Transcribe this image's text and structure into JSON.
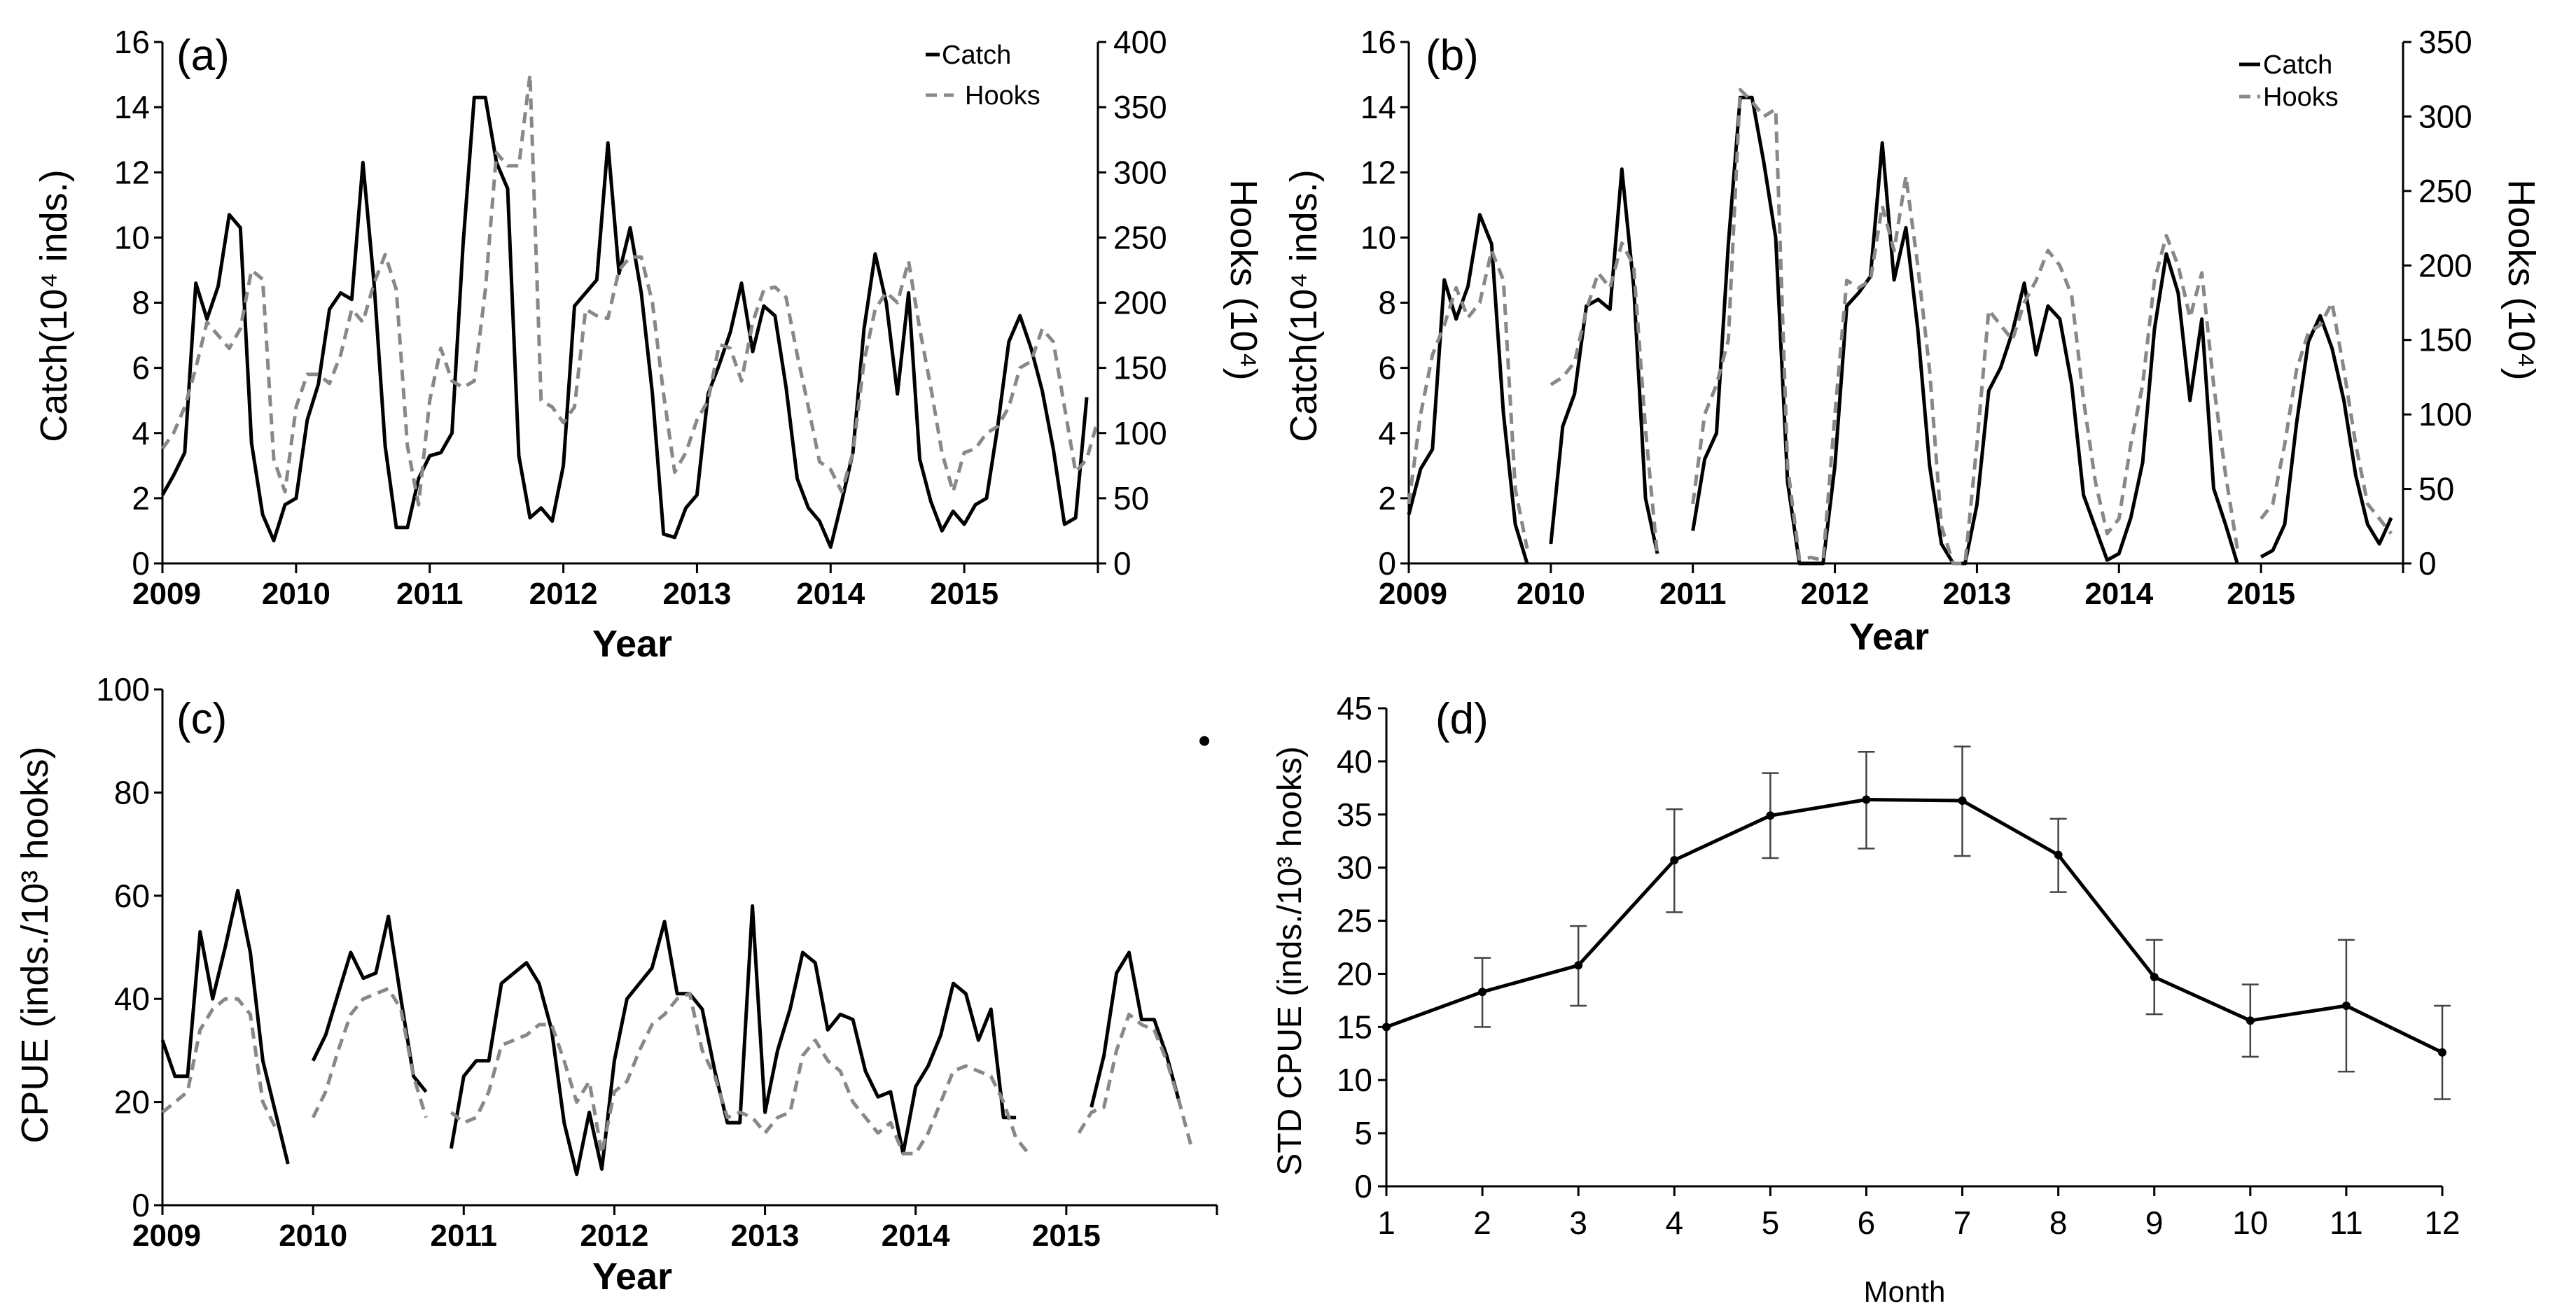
{
  "chart_data": [
    {
      "id": "a",
      "type": "line",
      "panel_label": "(a)",
      "xlabel": "Year",
      "ylabel": "Catch(10⁴ inds.)",
      "y2label": "Hooks (10⁴)",
      "ylim": [
        0,
        16
      ],
      "y2lim": [
        0,
        400
      ],
      "y_ticks": [
        0,
        2,
        4,
        6,
        8,
        10,
        12,
        14,
        16
      ],
      "y2_ticks": [
        0,
        50,
        100,
        150,
        200,
        250,
        300,
        350,
        400
      ],
      "x_ticks": [
        "2009",
        "2010",
        "2011",
        "2012",
        "2013",
        "2014",
        "2015"
      ],
      "legend": [
        "Catch",
        "Hooks"
      ],
      "legend_position": "top-right",
      "series": [
        {
          "name": "Catch",
          "axis": "left",
          "style": "solid",
          "values": [
            2.1,
            2.7,
            3.4,
            8.6,
            7.5,
            8.5,
            10.7,
            10.3,
            3.7,
            1.5,
            0.7,
            1.8,
            2.0,
            4.4,
            5.5,
            7.8,
            8.3,
            8.1,
            12.3,
            8.6,
            3.6,
            1.1,
            1.1,
            2.6,
            3.3,
            3.4,
            4.0,
            9.8,
            14.3,
            14.3,
            12.3,
            11.5,
            3.3,
            1.4,
            1.7,
            1.3,
            3.0,
            7.9,
            8.3,
            8.7,
            12.9,
            8.9,
            10.3,
            8.3,
            5.2,
            0.9,
            0.8,
            1.7,
            2.1,
            5.2,
            6.1,
            7.1,
            8.6,
            6.5,
            7.9,
            7.6,
            5.4,
            2.6,
            1.7,
            1.3,
            0.5,
            1.9,
            3.4,
            7.2,
            9.5,
            8.0,
            5.2,
            8.3,
            3.2,
            1.9,
            1.0,
            1.6,
            1.2,
            1.8,
            2.0,
            4.2,
            6.8,
            7.6,
            6.6,
            5.3,
            3.5,
            1.2,
            1.4,
            5.1
          ]
        },
        {
          "name": "Hooks",
          "axis": "right",
          "style": "dashed",
          "values": [
            88,
            100,
            120,
            150,
            185,
            175,
            165,
            180,
            225,
            218,
            80,
            55,
            120,
            145,
            145,
            138,
            160,
            195,
            185,
            215,
            237,
            210,
            90,
            45,
            125,
            165,
            140,
            135,
            140,
            210,
            315,
            305,
            305,
            375,
            125,
            120,
            108,
            120,
            195,
            190,
            188,
            225,
            235,
            235,
            200,
            130,
            70,
            85,
            110,
            125,
            168,
            165,
            140,
            185,
            210,
            212,
            204,
            160,
            120,
            78,
            72,
            55,
            85,
            155,
            195,
            208,
            200,
            232,
            180,
            135,
            85,
            55,
            85,
            88,
            100,
            105,
            120,
            150,
            155,
            180,
            170,
            120,
            70,
            80,
            110
          ]
        }
      ]
    },
    {
      "id": "b",
      "type": "line",
      "panel_label": "(b)",
      "xlabel": "Year",
      "ylabel": "Catch(10⁴ inds.)",
      "y2label": "Hooks (10⁴)",
      "ylim": [
        0,
        16
      ],
      "y2lim": [
        0,
        350
      ],
      "y_ticks": [
        0,
        2,
        4,
        6,
        8,
        10,
        12,
        14,
        16
      ],
      "y2_ticks": [
        0,
        50,
        100,
        150,
        200,
        250,
        300,
        350
      ],
      "x_ticks": [
        "2009",
        "2010",
        "2011",
        "2012",
        "2013",
        "2014",
        "2015"
      ],
      "legend": [
        "Catch",
        "Hooks"
      ],
      "legend_position": "top-right",
      "series": [
        {
          "name": "Catch",
          "axis": "left",
          "style": "solid",
          "values": [
            1.5,
            2.9,
            3.5,
            8.7,
            7.5,
            8.5,
            10.7,
            9.8,
            4.6,
            1.2,
            0,
            null,
            0.6,
            4.2,
            5.2,
            7.9,
            8.1,
            7.8,
            12.1,
            8.5,
            2.0,
            0.3,
            null,
            null,
            1.0,
            3.2,
            4.0,
            9.8,
            14.3,
            14.3,
            12.3,
            10.0,
            2.5,
            0,
            0,
            0,
            3.0,
            7.9,
            8.3,
            8.8,
            12.9,
            8.7,
            10.3,
            7.2,
            3.0,
            0.6,
            0,
            0,
            1.8,
            5.3,
            6.0,
            7.1,
            8.6,
            6.4,
            7.9,
            7.5,
            5.5,
            2.1,
            1.1,
            0.1,
            0.3,
            1.4,
            3.1,
            7.2,
            9.5,
            8.3,
            5.0,
            7.5,
            2.3,
            1.2,
            0,
            null,
            0.2,
            0.4,
            1.2,
            4.3,
            6.8,
            7.6,
            6.6,
            5.0,
            2.7,
            1.2,
            0.6,
            1.4
          ]
        },
        {
          "name": "Hooks",
          "axis": "right",
          "style": "dashed",
          "values": [
            40,
            100,
            140,
            160,
            185,
            165,
            175,
            210,
            190,
            50,
            10,
            null,
            120,
            125,
            135,
            170,
            195,
            185,
            215,
            200,
            90,
            5,
            null,
            null,
            40,
            100,
            120,
            150,
            318,
            310,
            300,
            305,
            65,
            3,
            4,
            2,
            100,
            190,
            185,
            190,
            240,
            210,
            260,
            200,
            130,
            25,
            0,
            0,
            80,
            170,
            160,
            150,
            175,
            190,
            210,
            200,
            180,
            110,
            55,
            20,
            30,
            80,
            120,
            190,
            220,
            200,
            165,
            195,
            120,
            60,
            10,
            null,
            30,
            40,
            80,
            130,
            155,
            160,
            175,
            130,
            80,
            40,
            30,
            20
          ]
        }
      ]
    },
    {
      "id": "c",
      "type": "line",
      "panel_label": "(c)",
      "xlabel": "Year",
      "ylabel": "CPUE (inds./10³ hooks)",
      "ylim": [
        0,
        100
      ],
      "y_ticks": [
        0,
        20,
        40,
        60,
        80,
        100
      ],
      "x_ticks": [
        "2009",
        "2010",
        "2011",
        "2012",
        "2013",
        "2014",
        "2015"
      ],
      "series": [
        {
          "name": "CPUE",
          "style": "solid",
          "values": [
            32,
            25,
            25,
            53,
            40,
            50,
            61,
            49,
            28,
            18,
            8,
            null,
            28,
            33,
            41,
            49,
            44,
            45,
            56,
            40,
            25,
            22,
            null,
            11,
            25,
            28,
            28,
            43,
            45,
            47,
            43,
            34,
            16,
            6,
            18,
            7,
            28,
            40,
            43,
            46,
            55,
            41,
            41,
            38,
            26,
            16,
            16,
            58,
            18,
            30,
            38,
            49,
            47,
            34,
            37,
            36,
            26,
            21,
            22,
            10,
            23,
            27,
            33,
            43,
            41,
            32,
            38,
            17,
            17,
            null,
            null,
            null,
            null,
            null,
            19,
            29,
            45,
            49,
            36,
            36,
            29,
            20,
            null,
            90
          ]
        },
        {
          "name": "STD CPUE",
          "style": "dashed",
          "values": [
            18,
            20,
            22,
            34,
            38,
            40,
            40,
            37,
            20,
            15,
            null,
            null,
            17,
            22,
            30,
            37,
            40,
            41,
            42,
            38,
            25,
            17,
            null,
            18,
            16,
            17,
            22,
            31,
            32,
            33,
            35,
            35,
            28,
            20,
            24,
            10,
            22,
            24,
            30,
            35,
            37,
            40,
            41,
            30,
            25,
            17,
            18,
            17,
            14,
            17,
            18,
            29,
            32,
            28,
            26,
            20,
            17,
            14,
            16,
            10,
            10,
            14,
            20,
            26,
            27,
            26,
            25,
            20,
            13,
            10,
            null,
            null,
            null,
            14,
            18,
            19,
            30,
            37,
            35,
            34,
            28,
            20,
            11,
            null
          ]
        }
      ]
    },
    {
      "id": "d",
      "type": "line",
      "panel_label": "(d)",
      "xlabel": "Month",
      "ylabel": "STD CPUE (inds./10³ hooks)",
      "ylim": [
        0,
        45
      ],
      "y_ticks": [
        0,
        5,
        10,
        15,
        20,
        25,
        30,
        35,
        40,
        45
      ],
      "categories": [
        "1",
        "2",
        "3",
        "4",
        "5",
        "6",
        "7",
        "8",
        "9",
        "10",
        "11",
        "12"
      ],
      "values": [
        15.0,
        18.3,
        20.8,
        30.7,
        34.9,
        36.4,
        36.3,
        31.2,
        19.7,
        15.6,
        17.0,
        12.6
      ],
      "error_upper": [
        15.0,
        21.5,
        24.5,
        35.5,
        38.9,
        40.9,
        41.4,
        34.6,
        23.2,
        19.0,
        23.2,
        17.0
      ],
      "error_lower": [
        15.0,
        15.0,
        17.0,
        25.8,
        30.9,
        31.8,
        31.1,
        27.7,
        16.2,
        12.2,
        10.8,
        8.2
      ]
    }
  ]
}
